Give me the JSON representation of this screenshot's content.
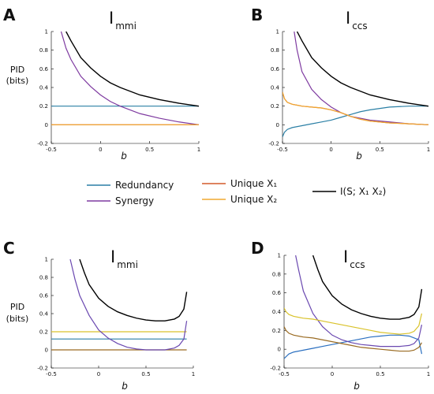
{
  "legend": [
    {
      "name": "Redundancy",
      "color": "#2a7fa5"
    },
    {
      "name": "Synergy",
      "color": "#7e3aa0"
    },
    {
      "name": "Unique X₁",
      "color": "#d35a2a"
    },
    {
      "name": "Unique X₂",
      "color": "#f0a830"
    },
    {
      "name": "I(S; X₁ X₂)",
      "color": "#000000"
    }
  ],
  "ylabel_text": [
    "PID",
    "(bits)"
  ],
  "chart_data": [
    {
      "panel": "A",
      "type": "line",
      "title_main": "I",
      "title_sub": "mmi",
      "xlabel": "b",
      "ylabel": "PID (bits)",
      "xlim": [
        -0.5,
        1
      ],
      "ylim": [
        -0.2,
        1
      ],
      "xticks": [
        -0.5,
        0,
        0.5,
        1
      ],
      "xticklabels": [
        "-0.5",
        "0",
        "0.5",
        "1"
      ],
      "yticks": [
        -0.2,
        0,
        0.2,
        0.4,
        0.6,
        0.8,
        1
      ],
      "yticklabels": [
        "-0.2",
        "0",
        "0.2",
        "0.4",
        "0.6",
        "0.8",
        "1"
      ],
      "series": [
        {
          "name": "Redundancy",
          "color": "#2a7fa5",
          "x": [
            -0.5,
            1
          ],
          "y": [
            0.2,
            0.2
          ]
        },
        {
          "name": "Synergy",
          "color": "#7e3aa0",
          "x": [
            -0.4,
            -0.35,
            -0.3,
            -0.2,
            -0.1,
            0,
            0.1,
            0.2,
            0.4,
            0.6,
            0.8,
            1
          ],
          "y": [
            1.0,
            0.82,
            0.7,
            0.52,
            0.41,
            0.32,
            0.25,
            0.2,
            0.12,
            0.07,
            0.03,
            0.0
          ]
        },
        {
          "name": "Unique X₁",
          "color": "#d35a2a",
          "x": [
            -0.5,
            1
          ],
          "y": [
            0.0,
            0.0
          ]
        },
        {
          "name": "Unique X₂",
          "color": "#f0a830",
          "x": [
            -0.5,
            1
          ],
          "y": [
            0.0,
            0.0
          ]
        },
        {
          "name": "I(S; X₁ X₂)",
          "color": "#000000",
          "x": [
            -0.35,
            -0.3,
            -0.2,
            -0.1,
            0,
            0.1,
            0.2,
            0.4,
            0.6,
            0.8,
            1
          ],
          "y": [
            1.0,
            0.9,
            0.72,
            0.61,
            0.52,
            0.45,
            0.4,
            0.32,
            0.27,
            0.23,
            0.2
          ]
        }
      ]
    },
    {
      "panel": "B",
      "type": "line",
      "title_main": "I",
      "title_sub": "ccs",
      "xlabel": "b",
      "ylabel": "",
      "xlim": [
        -0.5,
        1
      ],
      "ylim": [
        -0.2,
        1
      ],
      "xticks": [
        -0.5,
        0,
        0.5,
        1
      ],
      "xticklabels": [
        "-0.5",
        "0",
        "0.5",
        "1"
      ],
      "yticks": [
        -0.2,
        0,
        0.2,
        0.4,
        0.6,
        0.8,
        1
      ],
      "yticklabels": [
        "-0.2",
        "0",
        "0.2",
        "0.4",
        "0.6",
        "0.8",
        "1"
      ],
      "series": [
        {
          "name": "Redundancy",
          "color": "#2a7fa5",
          "x": [
            -0.5,
            -0.48,
            -0.45,
            -0.4,
            -0.3,
            -0.2,
            -0.1,
            0,
            0.1,
            0.2,
            0.3,
            0.4,
            0.6,
            0.8,
            1
          ],
          "y": [
            -0.13,
            -0.08,
            -0.05,
            -0.03,
            -0.01,
            0.01,
            0.03,
            0.05,
            0.08,
            0.11,
            0.14,
            0.16,
            0.19,
            0.2,
            0.2
          ]
        },
        {
          "name": "Synergy",
          "color": "#7e3aa0",
          "x": [
            -0.38,
            -0.35,
            -0.3,
            -0.2,
            -0.1,
            0,
            0.1,
            0.2,
            0.3,
            0.4,
            0.6,
            0.8,
            1
          ],
          "y": [
            1.0,
            0.8,
            0.57,
            0.38,
            0.27,
            0.19,
            0.13,
            0.09,
            0.07,
            0.05,
            0.03,
            0.01,
            0.0
          ]
        },
        {
          "name": "Unique X₁",
          "color": "#d35a2a",
          "x": [
            -0.5,
            -0.48,
            -0.45,
            -0.4,
            -0.3,
            -0.2,
            -0.1,
            0,
            0.1,
            0.2,
            0.3,
            0.4,
            0.6,
            0.8,
            1
          ],
          "y": [
            0.35,
            0.28,
            0.24,
            0.22,
            0.2,
            0.19,
            0.18,
            0.16,
            0.13,
            0.09,
            0.06,
            0.04,
            0.02,
            0.01,
            0.0
          ]
        },
        {
          "name": "Unique X₂",
          "color": "#f0a830",
          "x": [
            -0.5,
            -0.48,
            -0.45,
            -0.4,
            -0.3,
            -0.2,
            -0.1,
            0,
            0.1,
            0.2,
            0.3,
            0.4,
            0.6,
            0.8,
            1
          ],
          "y": [
            0.35,
            0.28,
            0.24,
            0.22,
            0.2,
            0.19,
            0.18,
            0.16,
            0.13,
            0.09,
            0.06,
            0.04,
            0.02,
            0.01,
            0.0
          ]
        },
        {
          "name": "I(S; X₁ X₂)",
          "color": "#000000",
          "x": [
            -0.35,
            -0.3,
            -0.2,
            -0.1,
            0,
            0.1,
            0.2,
            0.4,
            0.6,
            0.8,
            1
          ],
          "y": [
            1.0,
            0.9,
            0.72,
            0.61,
            0.52,
            0.45,
            0.4,
            0.32,
            0.27,
            0.23,
            0.2
          ]
        }
      ]
    },
    {
      "panel": "C",
      "type": "line",
      "title_main": "I",
      "title_sub": "mmi",
      "xlabel": "b",
      "ylabel": "PID (bits)",
      "xlim": [
        -0.5,
        1
      ],
      "ylim": [
        -0.2,
        1
      ],
      "xticks": [
        -0.5,
        0,
        0.5,
        1
      ],
      "xticklabels": [
        "-0.5",
        "0",
        "0.5",
        "1"
      ],
      "yticks": [
        -0.2,
        0,
        0.2,
        0.4,
        0.6,
        0.8,
        1
      ],
      "yticklabels": [
        "-0.2",
        "0",
        "0.2",
        "0.4",
        "0.6",
        "0.8",
        "1"
      ],
      "series": [
        {
          "name": "Redundancy",
          "color": "#2a7fa5",
          "x": [
            -0.5,
            0.93
          ],
          "y": [
            0.12,
            0.12
          ]
        },
        {
          "name": "Unique X₂",
          "color": "#d9c22a",
          "x": [
            -0.5,
            0.93
          ],
          "y": [
            0.2,
            0.2
          ]
        },
        {
          "name": "Unique X₁",
          "color": "#9a6b22",
          "x": [
            -0.5,
            0.93
          ],
          "y": [
            0.0,
            0.0
          ]
        },
        {
          "name": "Synergy",
          "color": "#6a48b0",
          "x": [
            -0.3,
            -0.25,
            -0.2,
            -0.1,
            0,
            0.1,
            0.2,
            0.3,
            0.4,
            0.5,
            0.6,
            0.7,
            0.8,
            0.85,
            0.9,
            0.93
          ],
          "y": [
            1.0,
            0.78,
            0.6,
            0.38,
            0.22,
            0.13,
            0.07,
            0.03,
            0.01,
            0.0,
            0.0,
            0.0,
            0.02,
            0.05,
            0.12,
            0.32
          ]
        },
        {
          "name": "I(S; X₁ X₂)",
          "color": "#000000",
          "x": [
            -0.2,
            -0.15,
            -0.1,
            0,
            0.1,
            0.2,
            0.3,
            0.4,
            0.5,
            0.6,
            0.7,
            0.8,
            0.85,
            0.9,
            0.93
          ],
          "y": [
            1.0,
            0.85,
            0.72,
            0.57,
            0.48,
            0.42,
            0.38,
            0.35,
            0.33,
            0.32,
            0.32,
            0.34,
            0.37,
            0.45,
            0.64
          ]
        }
      ]
    },
    {
      "panel": "D",
      "type": "line",
      "title_main": "I",
      "title_sub": "ccs",
      "xlabel": "b",
      "ylabel": "",
      "xlim": [
        -0.5,
        1
      ],
      "ylim": [
        -0.2,
        1
      ],
      "xticks": [
        -0.5,
        0,
        0.5,
        1
      ],
      "xticklabels": [
        "-0.5",
        "0",
        "0.5",
        "1"
      ],
      "yticks": [
        -0.2,
        0,
        0.2,
        0.4,
        0.6,
        0.8,
        1
      ],
      "yticklabels": [
        "-0.2",
        "0",
        "0.2",
        "0.4",
        "0.6",
        "0.8",
        "1"
      ],
      "series": [
        {
          "name": "Redundancy",
          "color": "#2a6fc0",
          "x": [
            -0.5,
            -0.45,
            -0.4,
            -0.3,
            -0.2,
            -0.1,
            0,
            0.1,
            0.2,
            0.3,
            0.4,
            0.5,
            0.6,
            0.7,
            0.8,
            0.9,
            0.93
          ],
          "y": [
            -0.1,
            -0.05,
            -0.03,
            -0.01,
            0.01,
            0.03,
            0.05,
            0.07,
            0.09,
            0.11,
            0.13,
            0.14,
            0.15,
            0.15,
            0.14,
            0.1,
            -0.05
          ]
        },
        {
          "name": "Synergy",
          "color": "#6a48b0",
          "x": [
            -0.38,
            -0.35,
            -0.3,
            -0.2,
            -0.1,
            0,
            0.1,
            0.2,
            0.3,
            0.4,
            0.5,
            0.6,
            0.7,
            0.8,
            0.85,
            0.9,
            0.93
          ],
          "y": [
            1.0,
            0.85,
            0.62,
            0.38,
            0.24,
            0.15,
            0.1,
            0.07,
            0.05,
            0.04,
            0.03,
            0.03,
            0.03,
            0.04,
            0.06,
            0.12,
            0.26
          ]
        },
        {
          "name": "Unique X₁",
          "color": "#9a6b22",
          "x": [
            -0.5,
            -0.48,
            -0.45,
            -0.4,
            -0.3,
            -0.2,
            -0.1,
            0,
            0.1,
            0.2,
            0.3,
            0.4,
            0.5,
            0.6,
            0.7,
            0.8,
            0.85,
            0.9,
            0.93
          ],
          "y": [
            0.24,
            0.2,
            0.17,
            0.15,
            0.13,
            0.12,
            0.1,
            0.08,
            0.06,
            0.04,
            0.02,
            0.01,
            0.0,
            -0.01,
            -0.02,
            -0.02,
            -0.01,
            0.02,
            0.07
          ]
        },
        {
          "name": "Unique X₂",
          "color": "#d9c22a",
          "x": [
            -0.5,
            -0.48,
            -0.45,
            -0.4,
            -0.3,
            -0.2,
            -0.1,
            0,
            0.1,
            0.2,
            0.3,
            0.4,
            0.5,
            0.6,
            0.7,
            0.8,
            0.85,
            0.9,
            0.93
          ],
          "y": [
            0.44,
            0.4,
            0.37,
            0.35,
            0.33,
            0.32,
            0.3,
            0.28,
            0.26,
            0.24,
            0.22,
            0.2,
            0.18,
            0.17,
            0.16,
            0.17,
            0.19,
            0.25,
            0.38
          ]
        },
        {
          "name": "I(S; X₁ X₂)",
          "color": "#000000",
          "x": [
            -0.2,
            -0.15,
            -0.1,
            0,
            0.1,
            0.2,
            0.3,
            0.4,
            0.5,
            0.6,
            0.7,
            0.8,
            0.85,
            0.9,
            0.93
          ],
          "y": [
            1.0,
            0.85,
            0.72,
            0.57,
            0.48,
            0.42,
            0.38,
            0.35,
            0.33,
            0.32,
            0.32,
            0.34,
            0.37,
            0.45,
            0.64
          ]
        }
      ]
    }
  ]
}
